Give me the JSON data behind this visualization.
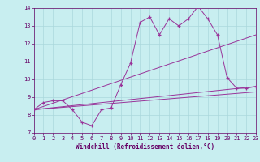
{
  "bg_color": "#c8eef0",
  "grid_color": "#aad8dc",
  "line_color": "#993399",
  "marker_color": "#993399",
  "xlabel": "Windchill (Refroidissement éolien,°C)",
  "xlabel_color": "#660066",
  "tick_color": "#660066",
  "xlim": [
    0,
    23
  ],
  "ylim": [
    7,
    14
  ],
  "yticks": [
    7,
    8,
    9,
    10,
    11,
    12,
    13,
    14
  ],
  "xticks": [
    0,
    1,
    2,
    3,
    4,
    5,
    6,
    7,
    8,
    9,
    10,
    11,
    12,
    13,
    14,
    15,
    16,
    17,
    18,
    19,
    20,
    21,
    22,
    23
  ],
  "series1_x": [
    0,
    1,
    2,
    3,
    4,
    5,
    6,
    7,
    8,
    9,
    10,
    11,
    12,
    13,
    14,
    15,
    16,
    17,
    18,
    19,
    20,
    21,
    22,
    23
  ],
  "series1_y": [
    8.3,
    8.7,
    8.8,
    8.8,
    8.3,
    7.6,
    7.4,
    8.3,
    8.4,
    9.7,
    10.9,
    13.2,
    13.5,
    12.5,
    13.4,
    13.0,
    13.4,
    14.1,
    13.4,
    12.5,
    10.1,
    9.5,
    9.5,
    9.6
  ],
  "series2_x": [
    0,
    23
  ],
  "series2_y": [
    8.3,
    9.6
  ],
  "series3_x": [
    0,
    23
  ],
  "series3_y": [
    8.3,
    12.5
  ],
  "series4_x": [
    0,
    23
  ],
  "series4_y": [
    8.3,
    9.3
  ]
}
